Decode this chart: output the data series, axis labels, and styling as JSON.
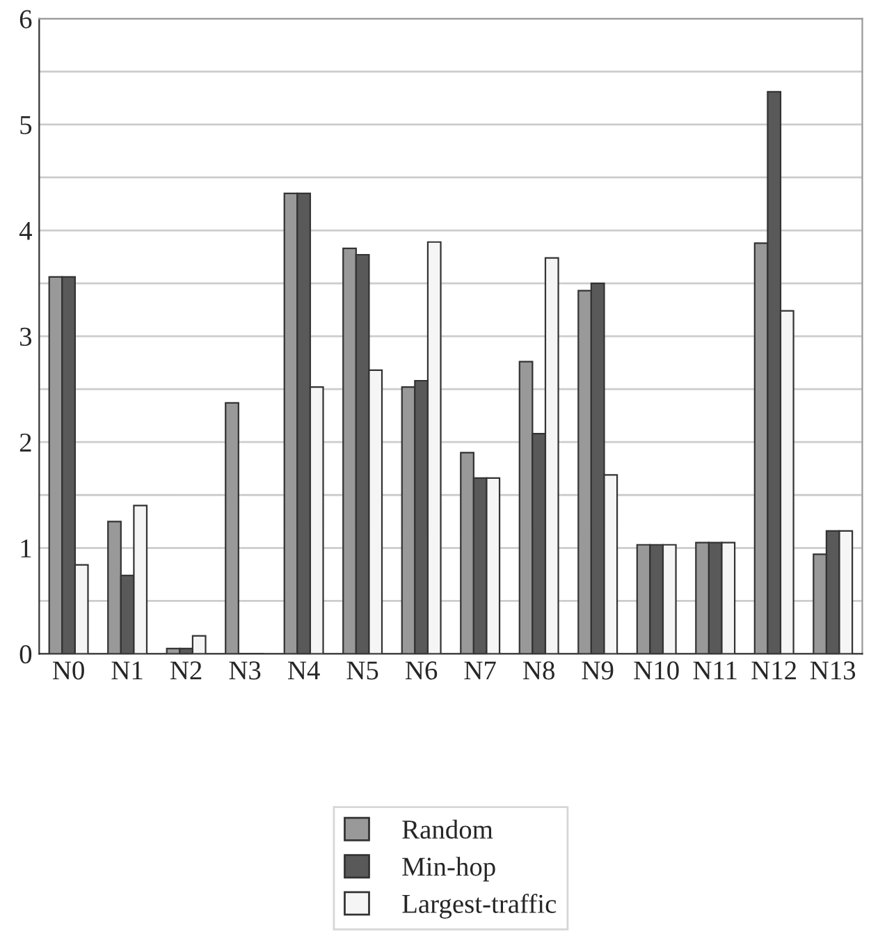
{
  "chart_data": {
    "type": "bar",
    "categories": [
      "N0",
      "N1",
      "N2",
      "N3",
      "N4",
      "N5",
      "N6",
      "N7",
      "N8",
      "N9",
      "N10",
      "N11",
      "N12",
      "N13"
    ],
    "series": [
      {
        "name": "Random",
        "color": "#999999",
        "values": [
          3.56,
          1.25,
          0.05,
          2.37,
          4.35,
          3.83,
          2.52,
          1.9,
          2.76,
          3.43,
          1.03,
          1.05,
          3.88,
          0.94
        ]
      },
      {
        "name": "Min-hop",
        "color": "#595959",
        "values": [
          3.56,
          0.74,
          0.05,
          0,
          4.35,
          3.77,
          2.58,
          1.66,
          2.08,
          3.5,
          1.03,
          1.05,
          5.31,
          1.16
        ]
      },
      {
        "name": "Largest-traffic",
        "color": "#f5f5f5",
        "values": [
          0.84,
          1.4,
          0.17,
          0,
          2.52,
          2.68,
          3.89,
          1.66,
          3.74,
          1.69,
          1.03,
          1.05,
          3.24,
          1.16
        ]
      }
    ],
    "ylim": [
      0,
      6
    ],
    "yticks": [
      0,
      {
        "value": 0.5,
        "label": null
      },
      1,
      {
        "value": 1.5,
        "label": null
      },
      2,
      {
        "value": 2.5,
        "label": null
      },
      3,
      {
        "value": 3.5,
        "label": null
      },
      4,
      {
        "value": 4.5,
        "label": null
      },
      5,
      {
        "value": 5.5,
        "label": null
      },
      6
    ],
    "grid": "y",
    "legend": "bottom"
  }
}
